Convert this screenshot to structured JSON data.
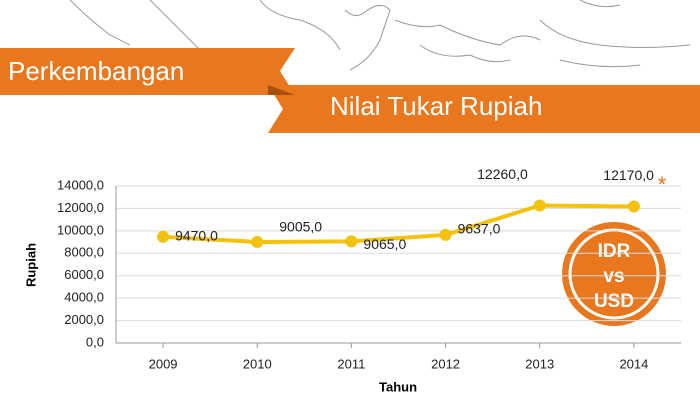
{
  "chart_data": {
    "type": "line",
    "title": "Perkembangan",
    "subtitle": "Nilai Tukar Rupiah",
    "x_label": "Tahun",
    "y_label": "Rupiah",
    "categories": [
      "2009",
      "2010",
      "2011",
      "2012",
      "2013",
      "2014"
    ],
    "values": [
      9470,
      9005,
      9065,
      9637,
      12260,
      12170
    ],
    "value_labels": [
      "9470,0",
      "9005,0",
      "9065,0",
      "9637,0",
      "12260,0",
      "12170,0"
    ],
    "color": "#f4c20d",
    "ylim": [
      0,
      14000
    ],
    "yticks": [
      {
        "value": 0,
        "label": "0,0"
      },
      {
        "value": 2000,
        "label": "2000,0"
      },
      {
        "value": 4000,
        "label": "4000,0"
      },
      {
        "value": 6000,
        "label": "6000,0"
      },
      {
        "value": 8000,
        "label": "8000,0"
      },
      {
        "value": 10000,
        "label": "10000,0"
      },
      {
        "value": 12000,
        "label": "12000,0"
      },
      {
        "value": 14000,
        "label": "14000,0"
      }
    ],
    "grid": true,
    "annotations": [
      "*",
      "IDR",
      "vs",
      "USD"
    ]
  }
}
